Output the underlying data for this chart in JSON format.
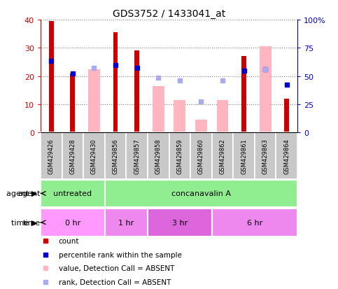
{
  "title": "GDS3752 / 1433041_at",
  "samples": [
    "GSM429426",
    "GSM429428",
    "GSM429430",
    "GSM429856",
    "GSM429857",
    "GSM429858",
    "GSM429859",
    "GSM429860",
    "GSM429862",
    "GSM429861",
    "GSM429863",
    "GSM429864"
  ],
  "red_bars": [
    39.5,
    21,
    0,
    35.5,
    29,
    0,
    0,
    0,
    0,
    27,
    0,
    12
  ],
  "pink_bars": [
    0,
    0,
    22.5,
    0,
    0,
    16.5,
    11.5,
    4.5,
    11.5,
    0,
    30.5,
    0
  ],
  "blue_squares": [
    25.5,
    21,
    0,
    24,
    23,
    0,
    0,
    0,
    0,
    22,
    22.5,
    17
  ],
  "lavender_squares": [
    0,
    0,
    23,
    0,
    0,
    19.5,
    18.5,
    11,
    18.5,
    0,
    22.5,
    0
  ],
  "ylim": [
    0,
    40
  ],
  "yticks_left": [
    0,
    10,
    20,
    30,
    40
  ],
  "yticks_right": [
    0,
    25,
    50,
    75,
    100
  ],
  "ytick_labels_right": [
    "0",
    "25",
    "50",
    "75",
    "100%"
  ],
  "agent_groups": [
    {
      "label": "untreated",
      "start": 0,
      "end": 3,
      "color": "#90EE90"
    },
    {
      "label": "concanavalin A",
      "start": 3,
      "end": 12,
      "color": "#90EE90"
    }
  ],
  "time_groups": [
    {
      "label": "0 hr",
      "start": 0,
      "end": 3,
      "color": "#FF99FF"
    },
    {
      "label": "1 hr",
      "start": 3,
      "end": 5,
      "color": "#EE88EE"
    },
    {
      "label": "3 hr",
      "start": 5,
      "end": 8,
      "color": "#DD66DD"
    },
    {
      "label": "6 hr",
      "start": 8,
      "end": 12,
      "color": "#EE88EE"
    }
  ],
  "color_red": "#CC0000",
  "color_pink": "#FFB6C1",
  "color_blue": "#0000CC",
  "color_lavender": "#AAAAEE",
  "color_axis_left": "#CC0000",
  "color_axis_right": "#0000CC",
  "sample_col_gray": "#C8C8C8",
  "legend_items": [
    {
      "color": "#CC0000",
      "label": "count"
    },
    {
      "color": "#0000CC",
      "label": "percentile rank within the sample"
    },
    {
      "color": "#FFB6C1",
      "label": "value, Detection Call = ABSENT"
    },
    {
      "color": "#AAAAEE",
      "label": "rank, Detection Call = ABSENT"
    }
  ]
}
